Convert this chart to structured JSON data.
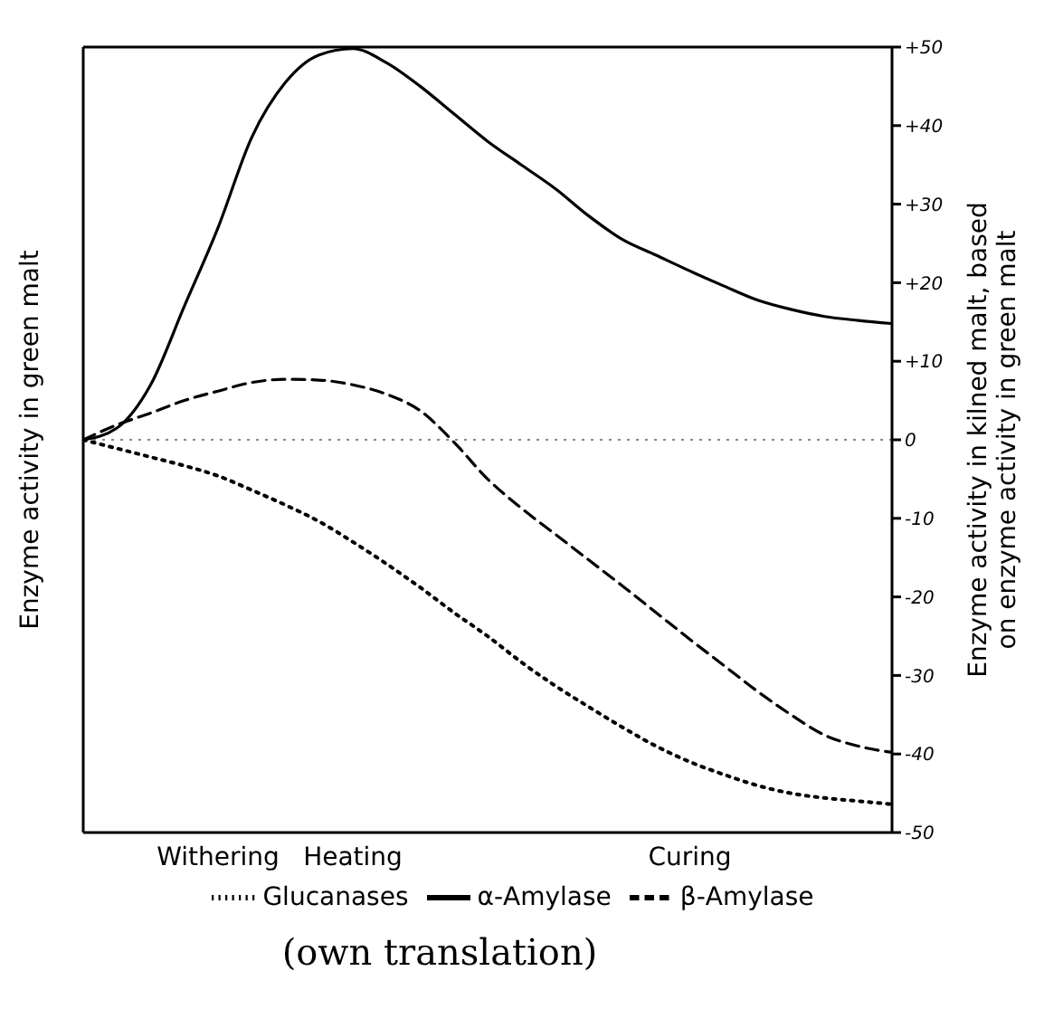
{
  "chart_data": {
    "type": "line",
    "ylabel": "Enzyme activity in green malt",
    "y2label": "Enzyme activity in kilned malt, based on enzyme activity in green malt",
    "categories": [
      null,
      null,
      null,
      null,
      "Withering",
      null,
      null,
      null,
      "Heating",
      null,
      null,
      null,
      null,
      null,
      null,
      null,
      null,
      null,
      "Curing",
      null,
      null,
      null,
      null,
      null,
      null
    ],
    "series": [
      {
        "name": "α-Amylase",
        "color": "#000000",
        "line_style": "solid",
        "axis": "y2",
        "values": [
          0,
          1.5,
          7,
          17,
          27,
          38.5,
          45.5,
          49,
          49.8,
          48,
          45,
          41.5,
          38,
          35,
          32,
          28.5,
          25.5,
          23.5,
          21.5,
          19.6,
          17.8,
          16.6,
          15.7,
          15.2,
          14.8
        ]
      },
      {
        "name": "β-Amylase",
        "color": "#000000",
        "line_style": "dashed",
        "axis": "y2",
        "values": [
          0,
          1.9,
          3.4,
          5,
          6.2,
          7.3,
          7.7,
          7.6,
          7,
          5.8,
          3.7,
          -0.3,
          -5,
          -8.7,
          -12,
          -15.3,
          -18.6,
          -22,
          -25.4,
          -28.7,
          -32,
          -35,
          -37.6,
          -39,
          -39.8
        ]
      },
      {
        "name": "Glucanases",
        "color": "#000000",
        "line_style": "dotted",
        "axis": "y2",
        "values": [
          0,
          -1.1,
          -2.2,
          -3.3,
          -4.6,
          -6.4,
          -8.3,
          -10.4,
          -13,
          -15.8,
          -18.8,
          -22,
          -25,
          -28.3,
          -31.3,
          -34,
          -36.6,
          -39,
          -41,
          -42.6,
          -44,
          -45,
          -45.6,
          -46,
          -46.4
        ]
      }
    ],
    "y2lim": [
      -50,
      50
    ],
    "y2ticks": [
      {
        "value": 50,
        "label": "+50"
      },
      {
        "value": 40,
        "label": "+40"
      },
      {
        "value": 30,
        "label": "+30"
      },
      {
        "value": 20,
        "label": "+20"
      },
      {
        "value": 10,
        "label": "+10"
      },
      0,
      -10,
      -20,
      -30,
      -40,
      -50
    ],
    "ref_lines": [
      {
        "axis": "y2",
        "value": 0,
        "color": "#888888",
        "line_style": "dotted"
      }
    ],
    "legend": "bottom",
    "grid": false,
    "marker": "none",
    "annotations": [
      "(own translation)"
    ]
  }
}
